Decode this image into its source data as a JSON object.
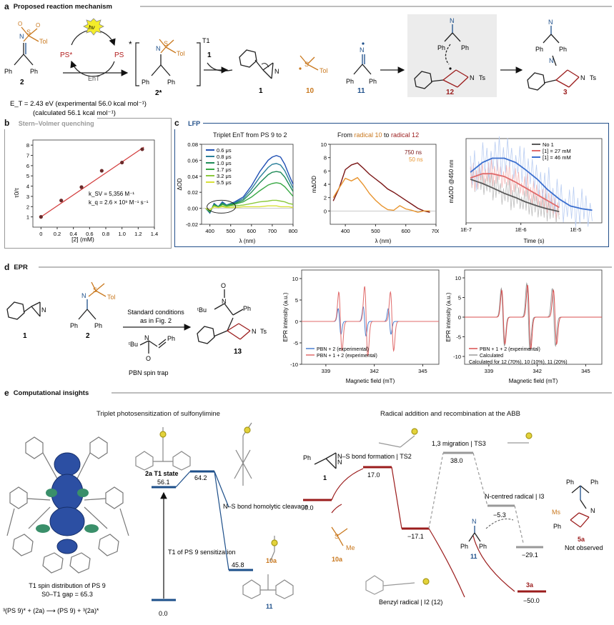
{
  "panel_a": {
    "letter": "a",
    "title": "Proposed reaction mechanism",
    "hv": "hν",
    "ps_star": "PS*",
    "ps": "PS",
    "ent": "EnT",
    "t1": "T1",
    "star": "*",
    "reagent_1": "1",
    "label_2": "2",
    "label_2star": "2*",
    "label_1": "1",
    "label_10": "10",
    "label_11": "11",
    "label_12": "12",
    "label_3": "3",
    "ph": "Ph",
    "tol": "Tol",
    "ts": "Ts",
    "et_line": "E_T = 2.43 eV (experimental 56.0 kcal mol⁻¹)",
    "calc_line": "(calculated 56.1 kcal mol⁻¹)",
    "colors": {
      "orange": "#c9781e",
      "blue": "#1d4f8a",
      "red": "#9b1c1c",
      "box": "#ececec"
    }
  },
  "panel_b": {
    "letter": "b",
    "title": "Stern–Volmer quenching",
    "ylabel": "τ0/τ",
    "xlabel": "[2] (mM)",
    "ksv": "k_SV = 5,356 M⁻¹",
    "kq": "k_q = 2.6 × 10⁹ M⁻¹ s⁻¹"
  },
  "panel_c": {
    "letter": "c",
    "title": "LFP",
    "c1_title": "Triplet EnT from PS 9 to 2",
    "c1_ylabel": "ΔOD",
    "c1_xlabel": "λ (nm)",
    "c2_title_a": "From ",
    "c2_title_b": "radical 10",
    "c2_title_c": " to ",
    "c2_title_d": "radical 12",
    "c2_ylabel": "mΔOD",
    "c2_xlabel": "λ (nm)",
    "c2_leg1": "750 ns",
    "c2_leg2": "50 ns",
    "c3_ylabel": "mΔOD @450 nm",
    "c3_xlabel": "Time (s)",
    "c3_leg": [
      "No 1",
      "[1] = 27 mM",
      "[1] = 46 mM"
    ]
  },
  "panel_d": {
    "letter": "d",
    "title": "EPR",
    "arrow_top": "Standard conditions",
    "arrow_bottom": "as in Fig. 2",
    "trap": "PBN spin trap",
    "label_1": "1",
    "label_2": "2",
    "label_13": "13",
    "ylabel": "EPR intensity (a.u.)",
    "xlabel": "Magnetic field (mT)",
    "leg_left": [
      "PBN + 2 (experimental)",
      "PBN + 1 + 2 (experimental)"
    ],
    "leg_right": [
      "PBN + 1 + 2 (experimental)",
      "Calculated",
      "Calculated for 12 (70%), 10 (10%), 11 (20%)"
    ]
  },
  "panel_e": {
    "letter": "e",
    "title": "Computational insights",
    "sub_left": "Triplet photosensitization of sulfonylimine",
    "sub_right": "Radical addition and recombination at the ABB",
    "spin_caption": "T1 spin distribution of PS 9",
    "gap": "S0–T1 gap = 65.3",
    "equation": "³(PS 9)* + (2a) ⟶ (PS 9) + ³(2a)*",
    "state_2a": "2a T1 state",
    "homolysis": "N–S bond homolytic cleavage",
    "sensitization": "T1 of PS 9 sensitization",
    "label_10a": "10a",
    "label_11": "11",
    "label_1": "1",
    "label_3a": "3a",
    "label_5a": "5a",
    "not_observed": "Not observed",
    "ns_bond": "N–S bond formation | TS2",
    "migration": "1,3 migration | TS3",
    "ncentred": "N-centred radical | I3",
    "benzyl": "Benzyl radical | I2 (12)",
    "energies": {
      "e00": "0.0",
      "e561": "56.1",
      "e642": "64.2",
      "e458": "45.8",
      "r00": "0.0",
      "r170": "17.0",
      "r171": "−17.1",
      "r380": "38.0",
      "r53": "−5.3",
      "r291": "−29.1",
      "r500": "−50.0"
    }
  },
  "chart_data": [
    {
      "type": "scatter",
      "title": "Stern–Volmer quenching",
      "xlabel": "[2] (mM)",
      "ylabel": "τ0/τ",
      "xlim": [
        -0.1,
        1.4
      ],
      "ylim": [
        0,
        8.5
      ],
      "xticks": [
        0,
        0.2,
        0.4,
        0.6,
        0.8,
        1.0,
        1.2,
        1.4
      ],
      "yticks": [
        1,
        2,
        3,
        4,
        5,
        6,
        7,
        8
      ],
      "x": [
        0,
        0.25,
        0.5,
        0.75,
        1.0,
        1.25
      ],
      "y": [
        1.0,
        2.6,
        3.9,
        5.5,
        6.3,
        7.6
      ],
      "fit": {
        "slope": 5.356,
        "intercept": 1.0
      }
    },
    {
      "type": "line",
      "title": "Triplet EnT from PS 9 to 2",
      "xlabel": "λ (nm)",
      "ylabel": "ΔOD",
      "xlim": [
        360,
        800
      ],
      "ylim": [
        -0.02,
        0.08
      ],
      "xticks": [
        400,
        500,
        600,
        700,
        800
      ],
      "yticks": [
        -0.02,
        0,
        0.02,
        0.04,
        0.06,
        0.08
      ],
      "x": [
        380,
        400,
        420,
        440,
        460,
        480,
        500,
        520,
        560,
        600,
        640,
        680,
        700,
        720,
        740,
        760,
        780,
        800
      ],
      "series": [
        {
          "name": "0.6 μs",
          "color": "#1f4fb4",
          "values": [
            0.0,
            -0.006,
            0.006,
            0.002,
            0.008,
            0.004,
            0.006,
            0.008,
            0.014,
            0.028,
            0.046,
            0.06,
            0.064,
            0.066,
            0.064,
            0.055,
            0.042,
            0.03
          ]
        },
        {
          "name": "0.8 μs",
          "color": "#2a7f9a",
          "values": [
            0.0,
            -0.005,
            0.005,
            0.002,
            0.007,
            0.004,
            0.006,
            0.007,
            0.012,
            0.024,
            0.039,
            0.051,
            0.055,
            0.056,
            0.054,
            0.047,
            0.036,
            0.025
          ]
        },
        {
          "name": "1.0 μs",
          "color": "#1e8a56",
          "values": [
            0.0,
            -0.005,
            0.005,
            0.002,
            0.006,
            0.003,
            0.005,
            0.006,
            0.01,
            0.02,
            0.032,
            0.042,
            0.045,
            0.046,
            0.045,
            0.039,
            0.03,
            0.021
          ]
        },
        {
          "name": "1.7 μs",
          "color": "#37a843",
          "values": [
            0.0,
            -0.004,
            0.004,
            0.001,
            0.005,
            0.003,
            0.004,
            0.005,
            0.008,
            0.014,
            0.022,
            0.029,
            0.031,
            0.032,
            0.031,
            0.027,
            0.021,
            0.015
          ]
        },
        {
          "name": "3.2 μs",
          "color": "#8bc93c",
          "values": [
            0.0,
            -0.003,
            0.003,
            0.001,
            0.003,
            0.002,
            0.003,
            0.003,
            0.004,
            0.006,
            0.008,
            0.009,
            0.01,
            0.01,
            0.009,
            0.008,
            0.006,
            0.005
          ]
        },
        {
          "name": "5.5 μs",
          "color": "#d8e038",
          "values": [
            0.0,
            -0.002,
            0.002,
            0.001,
            0.002,
            0.001,
            0.001,
            0.001,
            0.002,
            0.002,
            0.002,
            0.003,
            0.003,
            0.003,
            0.002,
            0.002,
            0.002,
            0.001
          ]
        }
      ]
    },
    {
      "type": "line",
      "title": "From radical 10 to radical 12",
      "xlabel": "λ (nm)",
      "ylabel": "mΔOD",
      "xlim": [
        350,
        700
      ],
      "ylim": [
        -2,
        10
      ],
      "xticks": [
        400,
        500,
        600,
        700
      ],
      "yticks": [
        0,
        2,
        4,
        6,
        8,
        10
      ],
      "x": [
        360,
        380,
        400,
        420,
        440,
        460,
        480,
        500,
        520,
        540,
        560,
        580,
        600,
        620,
        640,
        660,
        680
      ],
      "series": [
        {
          "name": "750 ns",
          "color": "#7a1515",
          "values": [
            1.5,
            3.5,
            6.2,
            6.9,
            7.2,
            6.4,
            5.5,
            4.8,
            4.1,
            3.3,
            2.8,
            2.2,
            1.6,
            1.0,
            0.4,
            0.0,
            -0.2
          ]
        },
        {
          "name": "50 ns",
          "color": "#e8942e",
          "values": [
            2.0,
            3.5,
            4.9,
            4.5,
            5.0,
            3.9,
            2.6,
            1.6,
            0.8,
            0.2,
            0.1,
            0.8,
            0.3,
            0.1,
            -0.2,
            0.0,
            0.0
          ]
        }
      ]
    },
    {
      "type": "line",
      "title": "",
      "xlabel": "Time (s)",
      "ylabel": "mΔOD @450 nm",
      "xscale": "log",
      "xticks": [
        "1E-7",
        "1E-6",
        "1E-5"
      ],
      "x": [
        1.2e-07,
        2e-07,
        3e-07,
        5e-07,
        8e-07,
        1.2e-06,
        2e-06,
        3e-06,
        5e-06,
        8e-06,
        1.3e-05,
        2e-05
      ],
      "series": [
        {
          "name": "No 1",
          "color": "#5a5a5a",
          "values": [
            2.6,
            2.3,
            2.0,
            1.6,
            1.3,
            1.0,
            0.7,
            0.5,
            0.3,
            null,
            null,
            null
          ]
        },
        {
          "name": "[1] = 27 mM",
          "color": "#e06b6b",
          "values": [
            2.7,
            3.0,
            3.0,
            2.8,
            2.4,
            2.0,
            1.5,
            1.1,
            0.6,
            null,
            null,
            null
          ]
        },
        {
          "name": "[1] = 46 mM",
          "color": "#3b6fcf",
          "values": [
            3.1,
            3.8,
            4.1,
            4.1,
            3.8,
            3.3,
            2.6,
            1.9,
            1.2,
            0.7,
            0.5,
            0.4
          ]
        }
      ]
    },
    {
      "type": "line",
      "title": "",
      "xlabel": "Magnetic field (mT)",
      "ylabel": "EPR intensity (a.u.)",
      "xlim": [
        337.5,
        346
      ],
      "ylim": [
        -10,
        12
      ],
      "xticks": [
        339,
        342,
        345
      ],
      "yticks": [
        -10,
        -5,
        0,
        5,
        10
      ]
    },
    {
      "type": "line",
      "title": "",
      "xlabel": "Magnetic field (mT)",
      "ylabel": "EPR intensity (a.u.)",
      "xlim": [
        337.5,
        346
      ],
      "ylim": [
        -12,
        12
      ],
      "xticks": [
        339,
        342,
        345
      ],
      "yticks": [
        -10,
        -5,
        0,
        5,
        10
      ]
    }
  ]
}
